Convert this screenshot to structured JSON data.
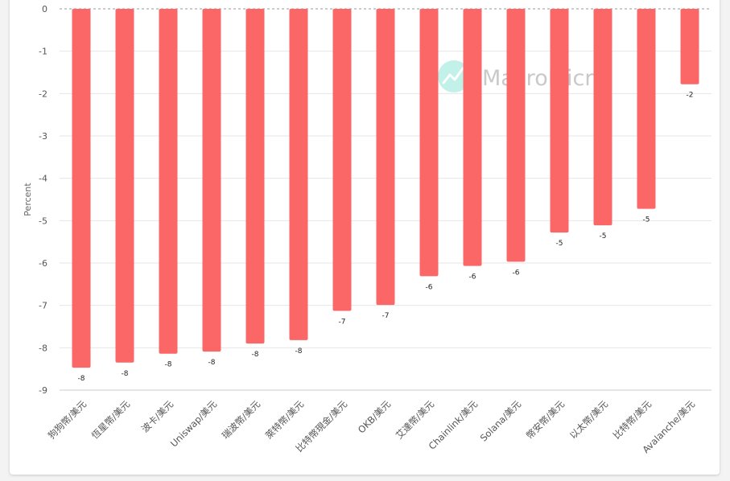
{
  "chart_data": {
    "type": "bar",
    "title": "",
    "xlabel": "",
    "ylabel": "Percent",
    "ylim": [
      -9,
      0
    ],
    "yticks": [
      0,
      -1,
      -2,
      -3,
      -4,
      -5,
      -6,
      -7,
      -8,
      -9
    ],
    "grid": true,
    "bar_color": "#fb6767",
    "categories": [
      "狗狗幣/美元",
      "恆星幣/美元",
      "波卡/美元",
      "Uniswap/美元",
      "瑞波幣/美元",
      "萊特幣/美元",
      "比特幣現金/美元",
      "OKB/美元",
      "艾達幣/美元",
      "Chainlink/美元",
      "Solana/美元",
      "幣安幣/美元",
      "以太幣/美元",
      "比特幣/美元",
      "Avalanche/美元"
    ],
    "values": [
      -8.47,
      -8.35,
      -8.14,
      -8.09,
      -7.9,
      -7.82,
      -7.13,
      -6.99,
      -6.31,
      -6.07,
      -5.97,
      -5.28,
      -5.11,
      -4.72,
      -1.78
    ],
    "data_labels": [
      "-8",
      "-8",
      "-8",
      "-8",
      "-8",
      "-8",
      "-7",
      "-7",
      "-6",
      "-6",
      "-6",
      "-5",
      "-5",
      "-5",
      "-2"
    ]
  },
  "watermark": {
    "text": "MacroMicro",
    "icon": "macromicro-logo-icon",
    "color": "#4fd8c0"
  }
}
